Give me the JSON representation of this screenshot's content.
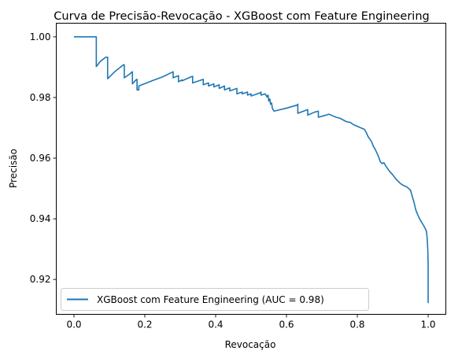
{
  "chart_data": {
    "type": "line",
    "title": "Curva de Precisão-Revocação - XGBoost com Feature Engineering",
    "xlabel": "Revocação",
    "ylabel": "Precisão",
    "xlim": [
      -0.05,
      1.05
    ],
    "ylim": [
      0.9085,
      1.0045
    ],
    "xticks": [
      0.0,
      0.2,
      0.4,
      0.6,
      0.8,
      1.0
    ],
    "xtick_labels": [
      "0.0",
      "0.2",
      "0.4",
      "0.6",
      "0.8",
      "1.0"
    ],
    "yticks": [
      0.92,
      0.94,
      0.96,
      0.98,
      1.0
    ],
    "ytick_labels": [
      "0.92",
      "0.94",
      "0.96",
      "0.98",
      "1.00"
    ],
    "grid": false,
    "legend_position": "lower-left",
    "series": [
      {
        "name": "XGBoost com Feature Engineering (AUC = 0.98)",
        "color": "#1f77b4",
        "x": [
          0.0,
          0.063,
          0.063,
          0.075,
          0.09,
          0.095,
          0.095,
          0.115,
          0.14,
          0.142,
          0.142,
          0.158,
          0.165,
          0.165,
          0.175,
          0.178,
          0.178,
          0.183,
          0.183,
          0.22,
          0.25,
          0.28,
          0.28,
          0.295,
          0.295,
          0.305,
          0.305,
          0.33,
          0.335,
          0.335,
          0.36,
          0.365,
          0.365,
          0.38,
          0.38,
          0.395,
          0.395,
          0.41,
          0.41,
          0.425,
          0.425,
          0.44,
          0.44,
          0.46,
          0.46,
          0.475,
          0.475,
          0.49,
          0.49,
          0.5,
          0.5,
          0.525,
          0.528,
          0.528,
          0.54,
          0.545,
          0.548,
          0.55,
          0.553,
          0.555,
          0.558,
          0.56,
          0.563,
          0.565,
          0.6,
          0.63,
          0.632,
          0.632,
          0.655,
          0.66,
          0.66,
          0.68,
          0.69,
          0.69,
          0.7,
          0.72,
          0.73,
          0.74,
          0.75,
          0.77,
          0.78,
          0.79,
          0.8,
          0.81,
          0.82,
          0.825,
          0.83,
          0.84,
          0.845,
          0.85,
          0.855,
          0.86,
          0.865,
          0.87,
          0.875,
          0.88,
          0.89,
          0.9,
          0.91,
          0.92,
          0.93,
          0.94,
          0.95,
          0.96,
          0.965,
          0.97,
          0.975,
          0.98,
          0.985,
          0.99,
          0.995,
          0.997,
          0.998,
          0.999,
          1.0,
          1.0
        ],
        "y": [
          1.0,
          1.0,
          0.9902,
          0.992,
          0.9933,
          0.9933,
          0.9862,
          0.9885,
          0.9908,
          0.9908,
          0.9865,
          0.9878,
          0.9885,
          0.9845,
          0.9858,
          0.986,
          0.9825,
          0.9825,
          0.9838,
          0.9855,
          0.9868,
          0.9885,
          0.9865,
          0.9872,
          0.9852,
          0.9858,
          0.9855,
          0.9868,
          0.987,
          0.9848,
          0.9858,
          0.986,
          0.9842,
          0.9848,
          0.9838,
          0.9845,
          0.9835,
          0.9842,
          0.983,
          0.9838,
          0.9825,
          0.9832,
          0.9822,
          0.983,
          0.9812,
          0.9818,
          0.9812,
          0.9818,
          0.9808,
          0.9812,
          0.9805,
          0.9815,
          0.9818,
          0.9808,
          0.9812,
          0.9802,
          0.9808,
          0.9788,
          0.9795,
          0.9778,
          0.9782,
          0.9765,
          0.9758,
          0.9755,
          0.9765,
          0.9775,
          0.9778,
          0.9748,
          0.9758,
          0.976,
          0.9742,
          0.9752,
          0.9755,
          0.9735,
          0.9738,
          0.9745,
          0.974,
          0.9735,
          0.9732,
          0.972,
          0.9718,
          0.971,
          0.9705,
          0.97,
          0.9695,
          0.9685,
          0.9672,
          0.9655,
          0.964,
          0.963,
          0.9618,
          0.9605,
          0.9588,
          0.9582,
          0.9585,
          0.9575,
          0.9558,
          0.9545,
          0.953,
          0.9518,
          0.951,
          0.9505,
          0.9495,
          0.9455,
          0.943,
          0.9415,
          0.9402,
          0.9392,
          0.9382,
          0.9372,
          0.936,
          0.934,
          0.932,
          0.93,
          0.925,
          0.9122
        ]
      }
    ]
  }
}
